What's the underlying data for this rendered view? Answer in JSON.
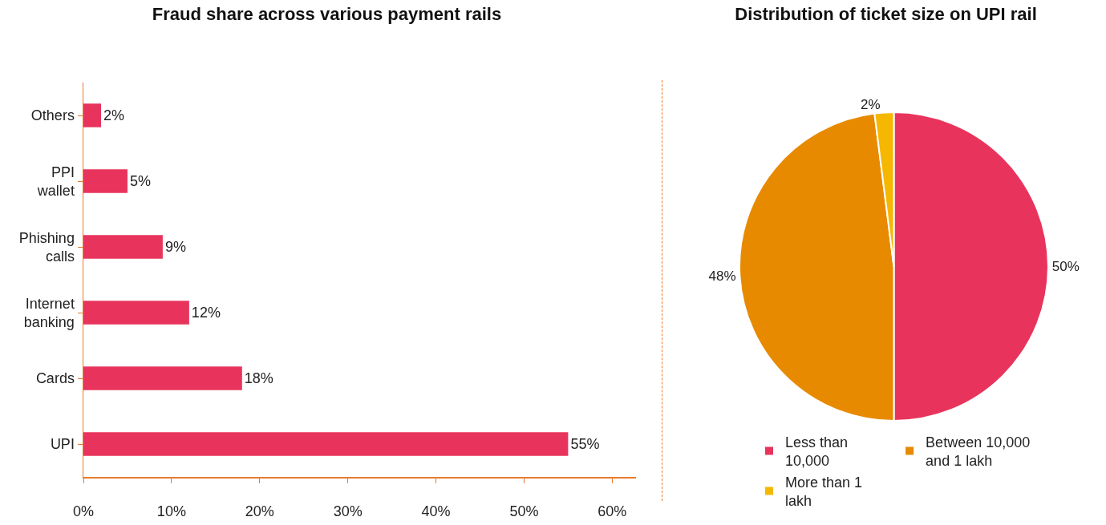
{
  "chart_data": [
    {
      "type": "bar",
      "title": "Fraud share across various payment rails",
      "orientation": "horizontal",
      "categories": [
        "Others",
        "PPI wallet",
        "Phishing calls",
        "Internet banking",
        "Cards",
        "UPI"
      ],
      "values": [
        2,
        5,
        9,
        12,
        18,
        55
      ],
      "value_labels": [
        "2%",
        "5%",
        "9%",
        "12%",
        "18%",
        "55%"
      ],
      "color": "#e8345c",
      "xlim": [
        0,
        62.7
      ],
      "xticks": [
        {
          "value": 0,
          "label": "0%"
        },
        {
          "value": 10,
          "label": "10%"
        },
        {
          "value": 20,
          "label": "20%"
        },
        {
          "value": 30,
          "label": "30%"
        },
        {
          "value": 40,
          "label": "40%"
        },
        {
          "value": 50,
          "label": "50%"
        },
        {
          "value": 60,
          "label": "60%"
        }
      ],
      "grid": false,
      "legend": false
    },
    {
      "type": "pie",
      "title": "Distribution of ticket size on UPI rail",
      "categories": [
        "Less than 10,000",
        "Between 10,000 and 1 lakh",
        "More than 1 lakh"
      ],
      "values": [
        50,
        48,
        2
      ],
      "value_labels": [
        "50%",
        "48%",
        "2%"
      ],
      "colors": [
        "#e8345c",
        "#e88a00",
        "#f6b700"
      ],
      "legend": "bottom"
    }
  ]
}
